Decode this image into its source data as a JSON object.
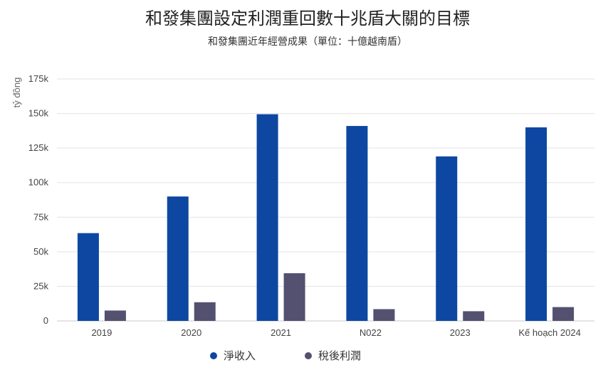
{
  "chart_data": {
    "type": "bar",
    "title": "和發集團設定利潤重回數十兆盾大關的目標",
    "subtitle": "和發集團近年經營成果（單位：十億越南盾）",
    "ylabel": "tỷ đồng",
    "xlabel": "",
    "ylim": [
      0,
      175000
    ],
    "yticks": [
      0,
      25000,
      50000,
      75000,
      100000,
      125000,
      150000,
      175000
    ],
    "ytick_labels": [
      "0",
      "25k",
      "50k",
      "75k",
      "100k",
      "125k",
      "150k",
      "175k"
    ],
    "categories": [
      "2019",
      "2020",
      "2021",
      "N022",
      "2023",
      "Kế hoạch 2024"
    ],
    "series": [
      {
        "name": "淨收入",
        "color": "#0d47a1",
        "values": [
          63500,
          90000,
          149500,
          141000,
          119000,
          140000
        ]
      },
      {
        "name": "稅後利潤",
        "color": "#545070",
        "values": [
          7500,
          13500,
          34500,
          8500,
          7000,
          10000
        ]
      }
    ],
    "grid": true,
    "legend_position": "bottom"
  }
}
